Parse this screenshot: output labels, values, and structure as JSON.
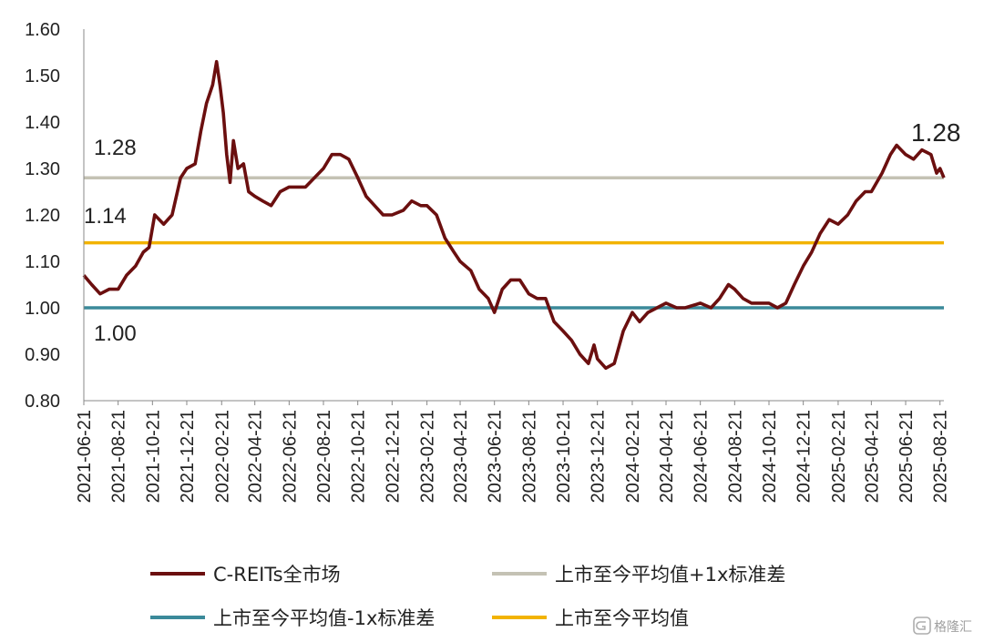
{
  "chart_data": {
    "type": "line",
    "title": "",
    "xlabel": "",
    "ylabel": "",
    "ylim": [
      0.8,
      1.6
    ],
    "y_ticks": [
      "0.80",
      "0.90",
      "1.00",
      "1.10",
      "1.20",
      "1.30",
      "1.40",
      "1.50",
      "1.60"
    ],
    "x_ticks": [
      "2021-06-21",
      "2021-08-21",
      "2021-10-21",
      "2021-12-21",
      "2022-02-21",
      "2022-04-21",
      "2022-06-21",
      "2022-08-21",
      "2022-10-21",
      "2022-12-21",
      "2023-02-21",
      "2023-04-21",
      "2023-06-21",
      "2023-08-21",
      "2023-10-21",
      "2023-12-21",
      "2024-02-21",
      "2024-04-21",
      "2024-06-21",
      "2024-08-21",
      "2024-10-21",
      "2024-12-21",
      "2025-02-21",
      "2025-04-21",
      "2025-06-21",
      "2025-08-21"
    ],
    "grid": false,
    "legend_position": "bottom",
    "series": [
      {
        "name": "C-REITs全市场",
        "color": "#6b0f0f",
        "points": [
          [
            "2021-06-21",
            1.07
          ],
          [
            "2021-07-05",
            1.05
          ],
          [
            "2021-07-20",
            1.03
          ],
          [
            "2021-08-05",
            1.04
          ],
          [
            "2021-08-21",
            1.04
          ],
          [
            "2021-09-05",
            1.07
          ],
          [
            "2021-09-21",
            1.09
          ],
          [
            "2021-10-05",
            1.12
          ],
          [
            "2021-10-15",
            1.13
          ],
          [
            "2021-10-25",
            1.2
          ],
          [
            "2021-11-10",
            1.18
          ],
          [
            "2021-11-25",
            1.2
          ],
          [
            "2021-12-10",
            1.28
          ],
          [
            "2021-12-21",
            1.3
          ],
          [
            "2022-01-05",
            1.31
          ],
          [
            "2022-01-15",
            1.38
          ],
          [
            "2022-01-25",
            1.44
          ],
          [
            "2022-02-05",
            1.48
          ],
          [
            "2022-02-12",
            1.53
          ],
          [
            "2022-02-18",
            1.48
          ],
          [
            "2022-02-24",
            1.42
          ],
          [
            "2022-03-02",
            1.33
          ],
          [
            "2022-03-08",
            1.27
          ],
          [
            "2022-03-14",
            1.36
          ],
          [
            "2022-03-22",
            1.3
          ],
          [
            "2022-04-01",
            1.31
          ],
          [
            "2022-04-10",
            1.25
          ],
          [
            "2022-04-21",
            1.24
          ],
          [
            "2022-05-05",
            1.23
          ],
          [
            "2022-05-20",
            1.22
          ],
          [
            "2022-06-05",
            1.25
          ],
          [
            "2022-06-21",
            1.26
          ],
          [
            "2022-07-05",
            1.26
          ],
          [
            "2022-07-20",
            1.26
          ],
          [
            "2022-08-05",
            1.28
          ],
          [
            "2022-08-21",
            1.3
          ],
          [
            "2022-09-05",
            1.33
          ],
          [
            "2022-09-20",
            1.33
          ],
          [
            "2022-10-05",
            1.32
          ],
          [
            "2022-10-21",
            1.28
          ],
          [
            "2022-11-05",
            1.24
          ],
          [
            "2022-11-20",
            1.22
          ],
          [
            "2022-12-05",
            1.2
          ],
          [
            "2022-12-21",
            1.2
          ],
          [
            "2023-01-10",
            1.21
          ],
          [
            "2023-01-25",
            1.23
          ],
          [
            "2023-02-10",
            1.22
          ],
          [
            "2023-02-21",
            1.22
          ],
          [
            "2023-03-10",
            1.2
          ],
          [
            "2023-03-25",
            1.15
          ],
          [
            "2023-04-10",
            1.12
          ],
          [
            "2023-04-21",
            1.1
          ],
          [
            "2023-05-10",
            1.08
          ],
          [
            "2023-05-25",
            1.04
          ],
          [
            "2023-06-10",
            1.02
          ],
          [
            "2023-06-21",
            0.99
          ],
          [
            "2023-07-05",
            1.04
          ],
          [
            "2023-07-20",
            1.06
          ],
          [
            "2023-08-05",
            1.06
          ],
          [
            "2023-08-21",
            1.03
          ],
          [
            "2023-09-05",
            1.02
          ],
          [
            "2023-09-20",
            1.02
          ],
          [
            "2023-10-05",
            0.97
          ],
          [
            "2023-10-21",
            0.95
          ],
          [
            "2023-11-05",
            0.93
          ],
          [
            "2023-11-20",
            0.9
          ],
          [
            "2023-12-05",
            0.88
          ],
          [
            "2023-12-15",
            0.92
          ],
          [
            "2023-12-21",
            0.89
          ],
          [
            "2024-01-05",
            0.87
          ],
          [
            "2024-01-20",
            0.88
          ],
          [
            "2024-02-05",
            0.95
          ],
          [
            "2024-02-21",
            0.99
          ],
          [
            "2024-03-05",
            0.97
          ],
          [
            "2024-03-20",
            0.99
          ],
          [
            "2024-04-05",
            1.0
          ],
          [
            "2024-04-21",
            1.01
          ],
          [
            "2024-05-10",
            1.0
          ],
          [
            "2024-05-25",
            1.0
          ],
          [
            "2024-06-21",
            1.01
          ],
          [
            "2024-07-10",
            1.0
          ],
          [
            "2024-07-25",
            1.02
          ],
          [
            "2024-08-10",
            1.05
          ],
          [
            "2024-08-21",
            1.04
          ],
          [
            "2024-09-05",
            1.02
          ],
          [
            "2024-09-20",
            1.01
          ],
          [
            "2024-10-05",
            1.01
          ],
          [
            "2024-10-21",
            1.01
          ],
          [
            "2024-11-05",
            1.0
          ],
          [
            "2024-11-20",
            1.01
          ],
          [
            "2024-12-05",
            1.05
          ],
          [
            "2024-12-21",
            1.09
          ],
          [
            "2025-01-05",
            1.12
          ],
          [
            "2025-01-20",
            1.16
          ],
          [
            "2025-02-05",
            1.19
          ],
          [
            "2025-02-21",
            1.18
          ],
          [
            "2025-03-10",
            1.2
          ],
          [
            "2025-03-25",
            1.23
          ],
          [
            "2025-04-10",
            1.25
          ],
          [
            "2025-04-21",
            1.25
          ],
          [
            "2025-05-10",
            1.29
          ],
          [
            "2025-05-25",
            1.33
          ],
          [
            "2025-06-05",
            1.35
          ],
          [
            "2025-06-21",
            1.33
          ],
          [
            "2025-07-05",
            1.32
          ],
          [
            "2025-07-20",
            1.34
          ],
          [
            "2025-08-05",
            1.33
          ],
          [
            "2025-08-15",
            1.29
          ],
          [
            "2025-08-21",
            1.3
          ],
          [
            "2025-08-28",
            1.28
          ]
        ]
      },
      {
        "name": "上市至今平均值+1x标准差",
        "color": "#c4c2b4",
        "value": 1.28
      },
      {
        "name": "上市至今平均值-1x标准差",
        "color": "#3b8a9a",
        "value": 1.0
      },
      {
        "name": "上市至今平均值",
        "color": "#f2b300",
        "value": 1.14
      }
    ],
    "annotations": {
      "upper_label": "1.28",
      "mean_label": "1.14",
      "lower_label": "1.00",
      "end_label": "1.28"
    }
  },
  "legend": {
    "items": [
      {
        "label": "C-REITs全市场",
        "color": "#6b0f0f"
      },
      {
        "label": "上市至今平均值+1x标准差",
        "color": "#c4c2b4"
      },
      {
        "label": "上市至今平均值-1x标准差",
        "color": "#3b8a9a"
      },
      {
        "label": "上市至今平均值",
        "color": "#f2b300"
      }
    ]
  },
  "watermark": {
    "text": "格隆汇",
    "icon": "g-logo-icon"
  }
}
